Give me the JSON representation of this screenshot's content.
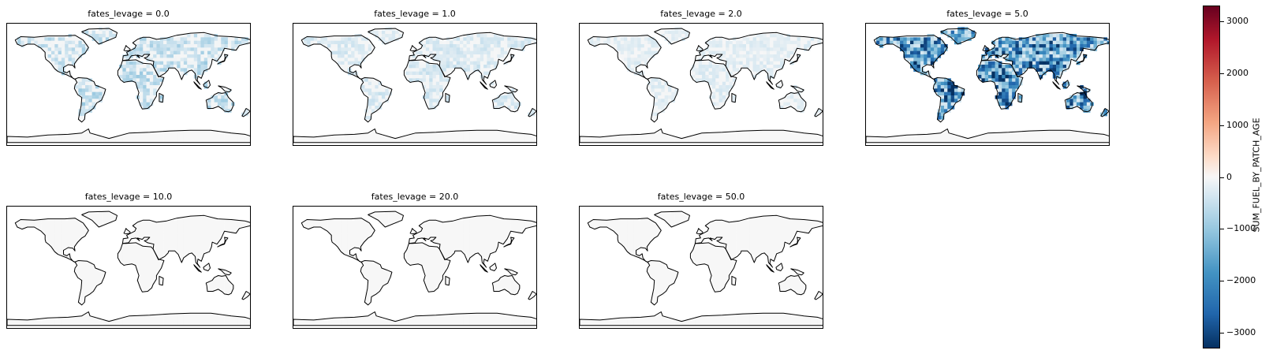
{
  "chart_data": {
    "type": "heatmap",
    "variable": "SUM_FUEL_BY_PATCH_AGE",
    "facet_label": "fates_levage",
    "panels": [
      {
        "title": "fates_levage = 0.0",
        "fates_levage": 0.0,
        "intensity": 0.3
      },
      {
        "title": "fates_levage = 1.0",
        "fates_levage": 1.0,
        "intensity": 0.2
      },
      {
        "title": "fates_levage = 2.0",
        "fates_levage": 2.0,
        "intensity": 0.15
      },
      {
        "title": "fates_levage = 5.0",
        "fates_levage": 5.0,
        "intensity": 0.85
      },
      {
        "title": "fates_levage = 10.0",
        "fates_levage": 10.0,
        "intensity": 0.0
      },
      {
        "title": "fates_levage = 20.0",
        "fates_levage": 20.0,
        "intensity": 0.0
      },
      {
        "title": "fates_levage = 50.0",
        "fates_levage": 50.0,
        "intensity": 0.0
      }
    ],
    "colorbar": {
      "label": "SUM_FUEL_BY_PATCH_AGE",
      "range": [
        -3300,
        3300
      ],
      "ticks": [
        3000,
        2000,
        1000,
        0,
        -1000,
        -2000,
        -3000
      ],
      "tick_labels": [
        "3000",
        "2000",
        "1000",
        "0",
        "−1000",
        "−2000",
        "−3000"
      ],
      "colormap": "RdBu_r"
    }
  }
}
